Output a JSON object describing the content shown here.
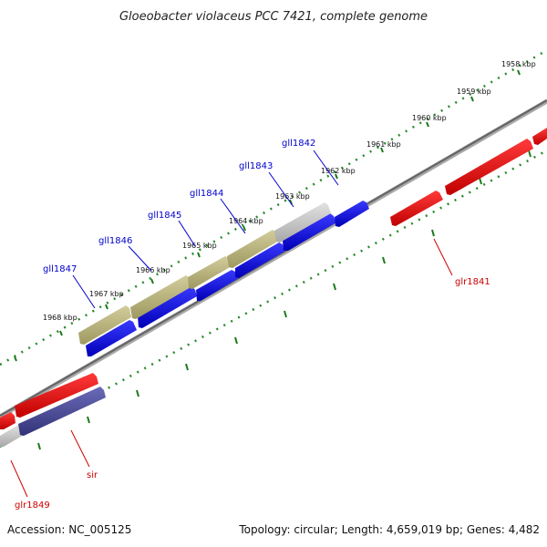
{
  "title": "Gloeobacter violaceus PCC 7421, complete genome",
  "footer": {
    "accession": "Accession: NC_005125",
    "summary": "Topology: circular; Length: 4,659,019 bp; Genes: 4,482"
  },
  "colors": {
    "forward_label": "#0000cc",
    "reverse_label": "#cc0000",
    "backbone": "#777777",
    "scale_dots": "#2a8a2a",
    "gene_blue": "#0000ee",
    "gene_red": "#ee0000",
    "gene_olive": "#b5b07a",
    "gene_gray": "#c8c8c8",
    "gene_navy": "#4a4a9a"
  },
  "scale": {
    "unit": "kbp",
    "ticks": [
      "1958 kbp",
      "1959 kbp",
      "1960 kbp",
      "1961 kbp",
      "1962 kbp",
      "1963 kbp",
      "1964 kbp",
      "1965 kbp",
      "1966 kbp",
      "1967 kbp",
      "1968 kbp"
    ]
  },
  "genes": {
    "forward": [
      {
        "label": "gll1842",
        "color": "forward_label"
      },
      {
        "label": "gll1843",
        "color": "forward_label"
      },
      {
        "label": "gll1844",
        "color": "forward_label"
      },
      {
        "label": "gll1845",
        "color": "forward_label"
      },
      {
        "label": "gll1846",
        "color": "forward_label"
      },
      {
        "label": "gll1847",
        "color": "forward_label"
      }
    ],
    "reverse": [
      {
        "label": "glr1841",
        "color": "reverse_label"
      },
      {
        "label": "sir",
        "color": "reverse_label"
      },
      {
        "label": "glr1849",
        "color": "reverse_label"
      }
    ]
  }
}
